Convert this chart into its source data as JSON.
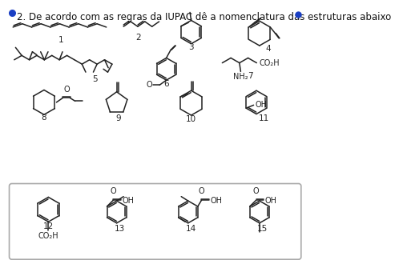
{
  "title": "2. De acordo com as regras da IUPAC dê a nomenclatura das estruturas abaixo",
  "title_color": "#111111",
  "title_fontsize": 8.5,
  "background_color": "#ffffff",
  "dot_color": "#1a3fc4",
  "box_color": "#aaaaaa",
  "line_color": "#222222",
  "label_fontsize": 7.5,
  "lw": 1.1
}
